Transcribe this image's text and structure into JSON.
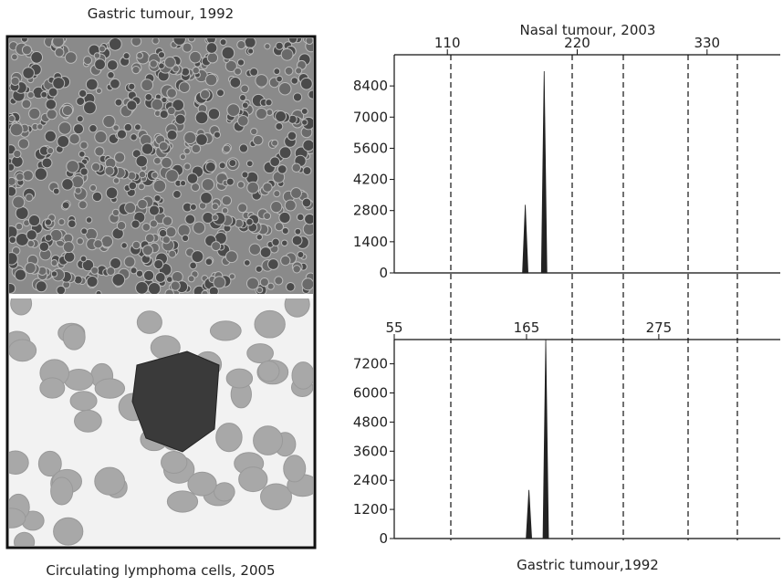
{
  "images": {
    "top_caption": "Gastric tumour, 1992",
    "bottom_caption": "Circulating lymphoma cells, 2005"
  },
  "chart_data": [
    {
      "type": "peaks",
      "title": "Nasal tumour, 2003",
      "color": "#222",
      "x": [
        176,
        192
      ],
      "values": [
        3060,
        9060
      ],
      "xlim": [
        65,
        392
      ],
      "xticks": [
        110,
        220,
        330
      ],
      "ylim": [
        0,
        9800
      ],
      "yticks": [
        0,
        1400,
        2800,
        4200,
        5600,
        7000,
        8400
      ]
    },
    {
      "type": "peaks",
      "title": "Gastric tumour,1992",
      "color": "#222",
      "x": [
        167,
        181
      ],
      "values": [
        2000,
        8200
      ],
      "xlim": [
        55,
        376
      ],
      "xticks": [
        55,
        165,
        275
      ],
      "ylim": [
        0,
        8200
      ],
      "yticks": [
        0,
        1200,
        2400,
        3600,
        4800,
        6000,
        7200
      ]
    }
  ]
}
